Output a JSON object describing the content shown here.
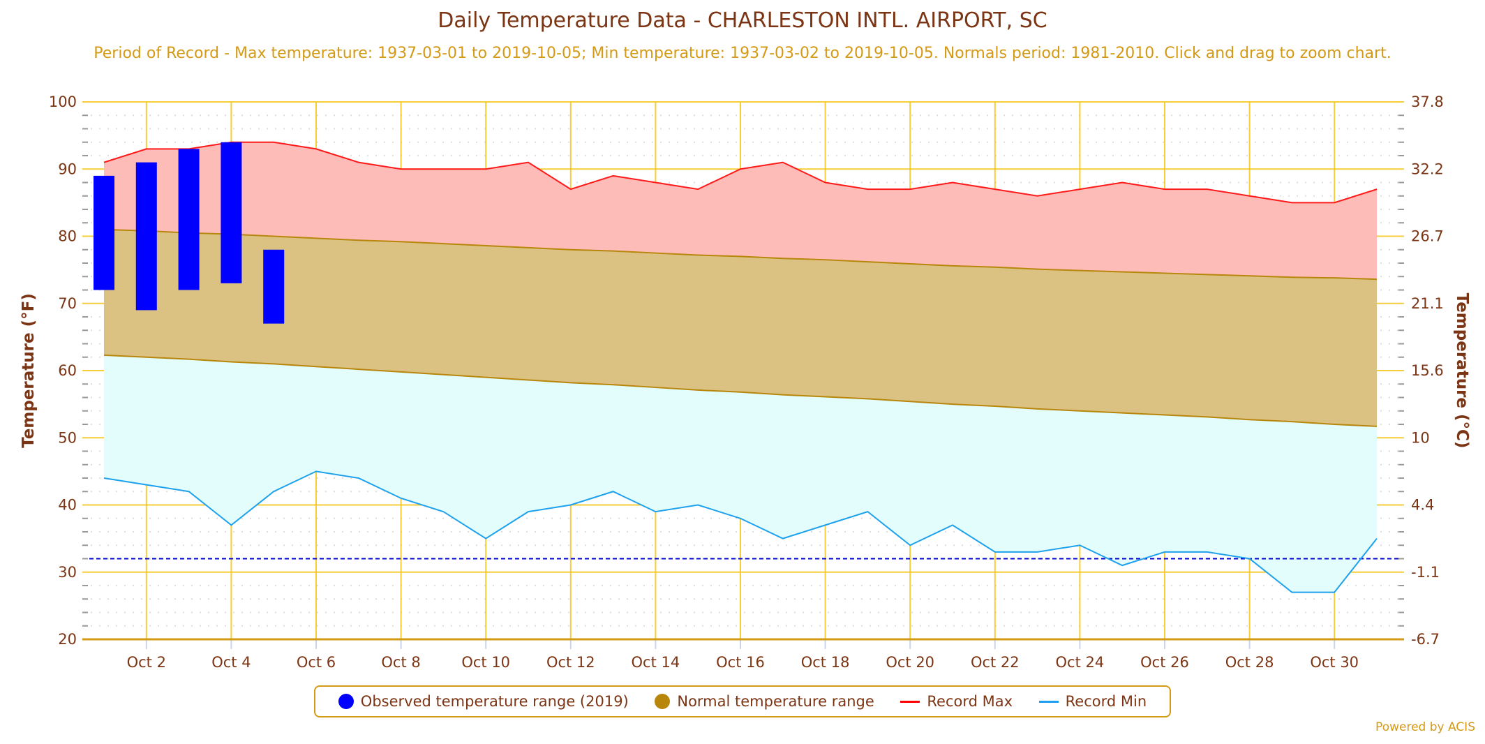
{
  "header": {
    "title": "Daily Temperature Data - CHARLESTON INTL. AIRPORT, SC",
    "subtitle": "Period of Record - Max temperature: 1937-03-01 to 2019-10-05; Min temperature: 1937-03-02 to 2019-10-05. Normals period: 1981-2010. Click and drag to zoom chart."
  },
  "legend": {
    "items": [
      {
        "label": "Observed temperature range (2019)",
        "color": "#0000ff",
        "kind": "dot"
      },
      {
        "label": "Normal temperature range",
        "color": "#b8860b",
        "kind": "dot"
      },
      {
        "label": "Record Max",
        "color": "#ff0000",
        "kind": "line"
      },
      {
        "label": "Record Min",
        "color": "#1e9ff2",
        "kind": "line"
      }
    ]
  },
  "credit": "Powered by ACIS",
  "colors": {
    "record_max_line": "#ff1a1a",
    "record_max_fill": "#fdbcb8",
    "normal_fill": "#dbc283",
    "normal_line": "#b8860b",
    "record_min_line": "#1ea1ec",
    "record_min_fill": "#e2fdfc",
    "observed": "#0000ff",
    "grid": "#f5c518",
    "freezing_line": "#0000cc",
    "text": "#7b3514",
    "subtitle": "#d49a16"
  },
  "chart_data": {
    "type": "area",
    "title": "Daily Temperature Data - CHARLESTON INTL. AIRPORT, SC",
    "xlabel": "",
    "ylabel": "Temperature (°F)",
    "ylabel_right": "Temperature (°C)",
    "ylim": [
      20,
      100
    ],
    "y_ticks": [
      20,
      30,
      40,
      50,
      60,
      70,
      80,
      90,
      100
    ],
    "y_ticks_right": [
      "-6.7",
      "-1.1",
      "4.4",
      "10",
      "15.6",
      "21.1",
      "26.7",
      "32.2",
      "37.8"
    ],
    "x_days": [
      1,
      2,
      3,
      4,
      5,
      6,
      7,
      8,
      9,
      10,
      11,
      12,
      13,
      14,
      15,
      16,
      17,
      18,
      19,
      20,
      21,
      22,
      23,
      24,
      25,
      26,
      27,
      28,
      29,
      30,
      31
    ],
    "x_tick_days": [
      2,
      4,
      6,
      8,
      10,
      12,
      14,
      16,
      18,
      20,
      22,
      24,
      26,
      28,
      30
    ],
    "x_tick_labels": [
      "Oct 2",
      "Oct 4",
      "Oct 6",
      "Oct 8",
      "Oct 10",
      "Oct 12",
      "Oct 14",
      "Oct 16",
      "Oct 18",
      "Oct 20",
      "Oct 22",
      "Oct 24",
      "Oct 26",
      "Oct 28",
      "Oct 30"
    ],
    "freezing_line": 32,
    "grid": true,
    "legend_position": "bottom",
    "series": [
      {
        "name": "Record Max",
        "type": "line-area",
        "values": [
          91,
          93,
          93,
          94,
          94,
          93,
          91,
          90,
          90,
          90,
          91,
          87,
          89,
          88,
          87,
          90,
          91,
          88,
          87,
          87,
          88,
          87,
          86,
          87,
          88,
          87,
          87,
          86,
          85,
          85,
          87
        ]
      },
      {
        "name": "Normal High",
        "type": "range-upper",
        "values": [
          81.0,
          80.8,
          80.5,
          80.3,
          80.0,
          79.7,
          79.4,
          79.2,
          78.9,
          78.6,
          78.3,
          78.0,
          77.8,
          77.5,
          77.2,
          77.0,
          76.7,
          76.5,
          76.2,
          75.9,
          75.6,
          75.4,
          75.1,
          74.9,
          74.7,
          74.5,
          74.3,
          74.1,
          73.9,
          73.8,
          73.6
        ]
      },
      {
        "name": "Normal Low",
        "type": "range-lower",
        "values": [
          62.3,
          62.0,
          61.7,
          61.3,
          61.0,
          60.6,
          60.2,
          59.8,
          59.4,
          59.0,
          58.6,
          58.2,
          57.9,
          57.5,
          57.1,
          56.8,
          56.4,
          56.1,
          55.8,
          55.4,
          55.0,
          54.7,
          54.3,
          54.0,
          53.7,
          53.4,
          53.1,
          52.7,
          52.4,
          52.0,
          51.7
        ]
      },
      {
        "name": "Record Min",
        "type": "line-area",
        "values": [
          44,
          43,
          42,
          37,
          42,
          45,
          44,
          41,
          39,
          35,
          39,
          40,
          42,
          39,
          40,
          38,
          35,
          37,
          39,
          34,
          37,
          33,
          33,
          34,
          31,
          33,
          33,
          32,
          27,
          27,
          35
        ]
      },
      {
        "name": "Observed temperature range (2019)",
        "type": "columnrange",
        "days": [
          1,
          2,
          3,
          4,
          5
        ],
        "high": [
          89,
          91,
          93,
          94,
          78
        ],
        "low": [
          72,
          69,
          72,
          73,
          67
        ]
      }
    ]
  }
}
